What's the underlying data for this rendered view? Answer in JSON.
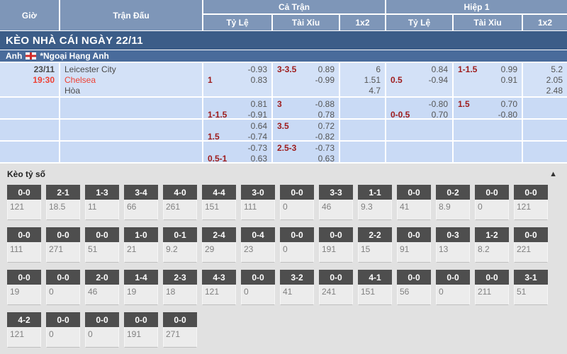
{
  "header": {
    "col_time": "Giờ",
    "col_match": "Trận Đấu",
    "group_full": "Cả Trận",
    "group_half": "Hiệp 1",
    "sub_hdp": "Tỷ Lệ",
    "sub_ou": "Tài Xỉu",
    "sub_1x2": "1x2"
  },
  "banner": {
    "title": "KÈO NHÀ CÁI NGÀY 22/11"
  },
  "league": {
    "country": "Anh",
    "name": "*Ngoại Hạng Anh",
    "flag_icon": "england-flag"
  },
  "match": {
    "date": "23/11",
    "time": "19:30",
    "home": "Leicester City",
    "away": "Chelsea",
    "draw_label": "Hòa"
  },
  "odds_rows": [
    [
      [
        {
          "r": "-0.93"
        },
        {
          "l": "1",
          "r": "0.83"
        }
      ],
      [
        {
          "l": "3-3.5",
          "r": "0.89"
        },
        {
          "r": "-0.99"
        }
      ],
      [
        {
          "r": "6"
        },
        {
          "r": "1.51"
        },
        {
          "r": "4.7"
        }
      ],
      [
        {
          "r": "0.84"
        },
        {
          "l": "0.5",
          "r": "-0.94"
        }
      ],
      [
        {
          "l": "1-1.5",
          "r": "0.99"
        },
        {
          "r": "0.91"
        }
      ],
      [
        {
          "r": "5.2"
        },
        {
          "r": "2.05"
        },
        {
          "r": "2.48"
        }
      ]
    ],
    [
      [
        {
          "r": "0.81"
        },
        {
          "l": "1-1.5",
          "r": "-0.91"
        }
      ],
      [
        {
          "l": "3",
          "r": "-0.88"
        },
        {
          "r": "0.78"
        }
      ],
      [],
      [
        {
          "r": "-0.80"
        },
        {
          "l": "0-0.5",
          "r": "0.70"
        }
      ],
      [
        {
          "l": "1.5",
          "r": "0.70"
        },
        {
          "r": "-0.80"
        }
      ],
      []
    ],
    [
      [
        {
          "r": "0.64"
        },
        {
          "l": "1.5",
          "r": "-0.74"
        }
      ],
      [
        {
          "l": "3.5",
          "r": "0.72"
        },
        {
          "r": "-0.82"
        }
      ],
      [],
      [],
      [],
      []
    ],
    [
      [
        {
          "r": "-0.73"
        },
        {
          "l": "0.5-1",
          "r": "0.63"
        }
      ],
      [
        {
          "l": "2.5-3",
          "r": "-0.73"
        },
        {
          "r": "0.63"
        }
      ],
      [],
      [],
      [],
      []
    ]
  ],
  "score_section": {
    "title": "Kèo tỷ số",
    "collapse_icon": "▲",
    "rows": [
      [
        {
          "s": "0-0",
          "v": "121"
        },
        {
          "s": "2-1",
          "v": "18.5"
        },
        {
          "s": "1-3",
          "v": "11"
        },
        {
          "s": "3-4",
          "v": "66"
        },
        {
          "s": "4-0",
          "v": "261"
        },
        {
          "s": "4-4",
          "v": "151"
        },
        {
          "s": "3-0",
          "v": "111"
        },
        {
          "s": "0-0",
          "v": "0"
        },
        {
          "s": "3-3",
          "v": "46"
        },
        {
          "s": "1-1",
          "v": "9.3"
        },
        {
          "s": "0-0",
          "v": "41"
        },
        {
          "s": "0-2",
          "v": "8.9"
        },
        {
          "s": "0-0",
          "v": "0"
        },
        {
          "s": "0-0",
          "v": "121"
        }
      ],
      [
        {
          "s": "0-0",
          "v": "111"
        },
        {
          "s": "0-0",
          "v": "271"
        },
        {
          "s": "0-0",
          "v": "51"
        },
        {
          "s": "1-0",
          "v": "21"
        },
        {
          "s": "0-1",
          "v": "9.2"
        },
        {
          "s": "2-4",
          "v": "29"
        },
        {
          "s": "0-4",
          "v": "23"
        },
        {
          "s": "0-0",
          "v": "0"
        },
        {
          "s": "0-0",
          "v": "191"
        },
        {
          "s": "2-2",
          "v": "15"
        },
        {
          "s": "0-0",
          "v": "91"
        },
        {
          "s": "0-3",
          "v": "13"
        },
        {
          "s": "1-2",
          "v": "8.2"
        },
        {
          "s": "0-0",
          "v": "221"
        }
      ],
      [
        {
          "s": "0-0",
          "v": "19"
        },
        {
          "s": "0-0",
          "v": "0"
        },
        {
          "s": "2-0",
          "v": "46"
        },
        {
          "s": "1-4",
          "v": "19"
        },
        {
          "s": "2-3",
          "v": "18"
        },
        {
          "s": "4-3",
          "v": "121"
        },
        {
          "s": "0-0",
          "v": "0"
        },
        {
          "s": "3-2",
          "v": "41"
        },
        {
          "s": "0-0",
          "v": "241"
        },
        {
          "s": "4-1",
          "v": "151"
        },
        {
          "s": "0-0",
          "v": "56"
        },
        {
          "s": "0-0",
          "v": "0"
        },
        {
          "s": "0-0",
          "v": "211"
        },
        {
          "s": "3-1",
          "v": "51"
        }
      ],
      [
        {
          "s": "4-2",
          "v": "121"
        },
        {
          "s": "0-0",
          "v": "0"
        },
        {
          "s": "0-0",
          "v": "0"
        },
        {
          "s": "0-0",
          "v": "191"
        },
        {
          "s": "0-0",
          "v": "271"
        }
      ]
    ]
  },
  "colors": {
    "header_bg": "#7e96b8",
    "banner_bg": "#3c5d88",
    "league_bg": "#496b9b",
    "row1_bg": "#d3e1f7",
    "row_bg": "#c9daf5",
    "handicap_text": "#9e1b1b",
    "odds_text": "#555555",
    "accent_red": "#ee4134",
    "dark_text": "#4a4a4a",
    "section_bg": "#e1e1e1",
    "score_head_bg": "#4e4e4e",
    "score_val_bg": "#ececec",
    "score_val_text": "#808080"
  }
}
